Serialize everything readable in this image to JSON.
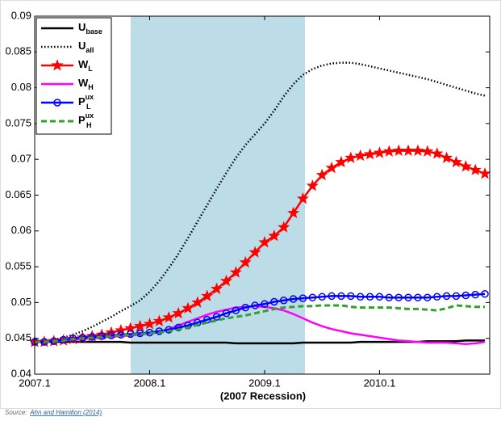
{
  "chart_data": {
    "type": "line",
    "categories": [
      "2007.1",
      null,
      null,
      null,
      null,
      null,
      null,
      null,
      null,
      null,
      null,
      null,
      "2008.1",
      null,
      null,
      null,
      null,
      null,
      null,
      null,
      null,
      null,
      null,
      null,
      "2009.1",
      null,
      null,
      null,
      null,
      null,
      null,
      null,
      null,
      null,
      null,
      null,
      "2010.1",
      null,
      null,
      null,
      null,
      null,
      null,
      null,
      null,
      null,
      null,
      null
    ],
    "x_label": "(2007 Recession)",
    "ylim": [
      0.04,
      0.09
    ],
    "yticks": [
      0.04,
      0.045,
      0.05,
      0.055,
      0.06,
      0.065,
      0.07,
      0.075,
      0.08,
      0.085,
      0.09
    ],
    "legend": "upper left",
    "series": [
      {
        "name": "U_base",
        "color": "#000000",
        "style": "solid",
        "marker": "none",
        "values": [
          0.0445,
          0.0445,
          0.0445,
          0.0445,
          0.0445,
          0.0445,
          0.0445,
          0.0445,
          0.0445,
          0.0445,
          0.0444,
          0.0444,
          0.0444,
          0.0444,
          0.0444,
          0.0444,
          0.0444,
          0.0444,
          0.0444,
          0.0444,
          0.0444,
          0.0443,
          0.0443,
          0.0443,
          0.0443,
          0.0443,
          0.0443,
          0.0443,
          0.0444,
          0.0444,
          0.0444,
          0.0444,
          0.0444,
          0.0444,
          0.0445,
          0.0445,
          0.0445,
          0.0445,
          0.0445,
          0.0445,
          0.0445,
          0.0446,
          0.0446,
          0.0446,
          0.0446,
          0.0447,
          0.0447,
          0.0447
        ]
      },
      {
        "name": "U_all",
        "color": "#000000",
        "style": "dotted",
        "marker": "none",
        "values": [
          0.0445,
          0.0446,
          0.0448,
          0.0451,
          0.0455,
          0.046,
          0.0466,
          0.0473,
          0.048,
          0.0488,
          0.0495,
          0.0503,
          0.0515,
          0.053,
          0.0548,
          0.0568,
          0.059,
          0.0613,
          0.0636,
          0.0659,
          0.0681,
          0.0702,
          0.072,
          0.0735,
          0.075,
          0.0768,
          0.0788,
          0.0805,
          0.0818,
          0.0826,
          0.0831,
          0.0834,
          0.0835,
          0.0835,
          0.0833,
          0.083,
          0.0827,
          0.0824,
          0.0821,
          0.0818,
          0.0815,
          0.0812,
          0.0808,
          0.0804,
          0.08,
          0.0796,
          0.0792,
          0.0789
        ]
      },
      {
        "name": "W_L",
        "color": "#ff0000",
        "style": "solid",
        "marker": "star",
        "values": [
          0.0445,
          0.0445,
          0.0446,
          0.0447,
          0.0449,
          0.0451,
          0.0453,
          0.0455,
          0.0458,
          0.0461,
          0.0464,
          0.0467,
          0.047,
          0.0474,
          0.0479,
          0.0485,
          0.0492,
          0.05,
          0.0509,
          0.0519,
          0.053,
          0.0542,
          0.0556,
          0.057,
          0.0584,
          0.0593,
          0.0605,
          0.0625,
          0.0645,
          0.0663,
          0.0678,
          0.0688,
          0.0696,
          0.0702,
          0.0705,
          0.0707,
          0.0709,
          0.0711,
          0.0712,
          0.0712,
          0.0712,
          0.0711,
          0.0708,
          0.0702,
          0.0696,
          0.069,
          0.0685,
          0.068
        ]
      },
      {
        "name": "W_H",
        "color": "#ff00ff",
        "style": "solid",
        "marker": "none",
        "values": [
          0.0445,
          0.0445,
          0.0446,
          0.0447,
          0.0448,
          0.0449,
          0.045,
          0.0451,
          0.0452,
          0.0453,
          0.0454,
          0.0455,
          0.0457,
          0.0459,
          0.0463,
          0.0468,
          0.0473,
          0.0478,
          0.0483,
          0.0487,
          0.049,
          0.0493,
          0.0494,
          0.0495,
          0.0494,
          0.0492,
          0.0489,
          0.0484,
          0.0478,
          0.0472,
          0.0467,
          0.0463,
          0.046,
          0.0457,
          0.0455,
          0.0453,
          0.0451,
          0.0449,
          0.0447,
          0.0446,
          0.0445,
          0.0444,
          0.0444,
          0.0444,
          0.0443,
          0.0442,
          0.0443,
          0.0445
        ]
      },
      {
        "name": "P_L^ux",
        "color": "#0000ff",
        "style": "solid",
        "marker": "circle",
        "values": [
          0.0445,
          0.0445,
          0.0446,
          0.0448,
          0.045,
          0.0451,
          0.0452,
          0.0453,
          0.0454,
          0.0455,
          0.0456,
          0.0457,
          0.0458,
          0.046,
          0.0462,
          0.0465,
          0.0468,
          0.0472,
          0.0476,
          0.048,
          0.0485,
          0.0489,
          0.0493,
          0.0496,
          0.0498,
          0.0501,
          0.0503,
          0.0505,
          0.0506,
          0.0507,
          0.0508,
          0.0509,
          0.0509,
          0.0509,
          0.0508,
          0.0508,
          0.0508,
          0.0507,
          0.0507,
          0.0507,
          0.0507,
          0.0507,
          0.0508,
          0.0509,
          0.0509,
          0.051,
          0.0511,
          0.0512
        ]
      },
      {
        "name": "P_H^ux",
        "color": "#33a02c",
        "style": "dashed",
        "marker": "none",
        "values": [
          0.0445,
          0.0445,
          0.0446,
          0.0447,
          0.0449,
          0.045,
          0.0451,
          0.0452,
          0.0453,
          0.0454,
          0.0455,
          0.0456,
          0.0457,
          0.0458,
          0.046,
          0.0462,
          0.0465,
          0.0469,
          0.0472,
          0.0475,
          0.0478,
          0.048,
          0.0482,
          0.0485,
          0.0488,
          0.0491,
          0.0493,
          0.0494,
          0.0495,
          0.0495,
          0.0496,
          0.0496,
          0.0496,
          0.0494,
          0.0493,
          0.0493,
          0.0493,
          0.0493,
          0.0492,
          0.0491,
          0.0491,
          0.049,
          0.0489,
          0.0492,
          0.0496,
          0.0495,
          0.0494,
          0.0494
        ]
      }
    ],
    "source_label": "Source:",
    "source_link": "Ahn and Hamilton (2014)",
    "source_end": "."
  }
}
